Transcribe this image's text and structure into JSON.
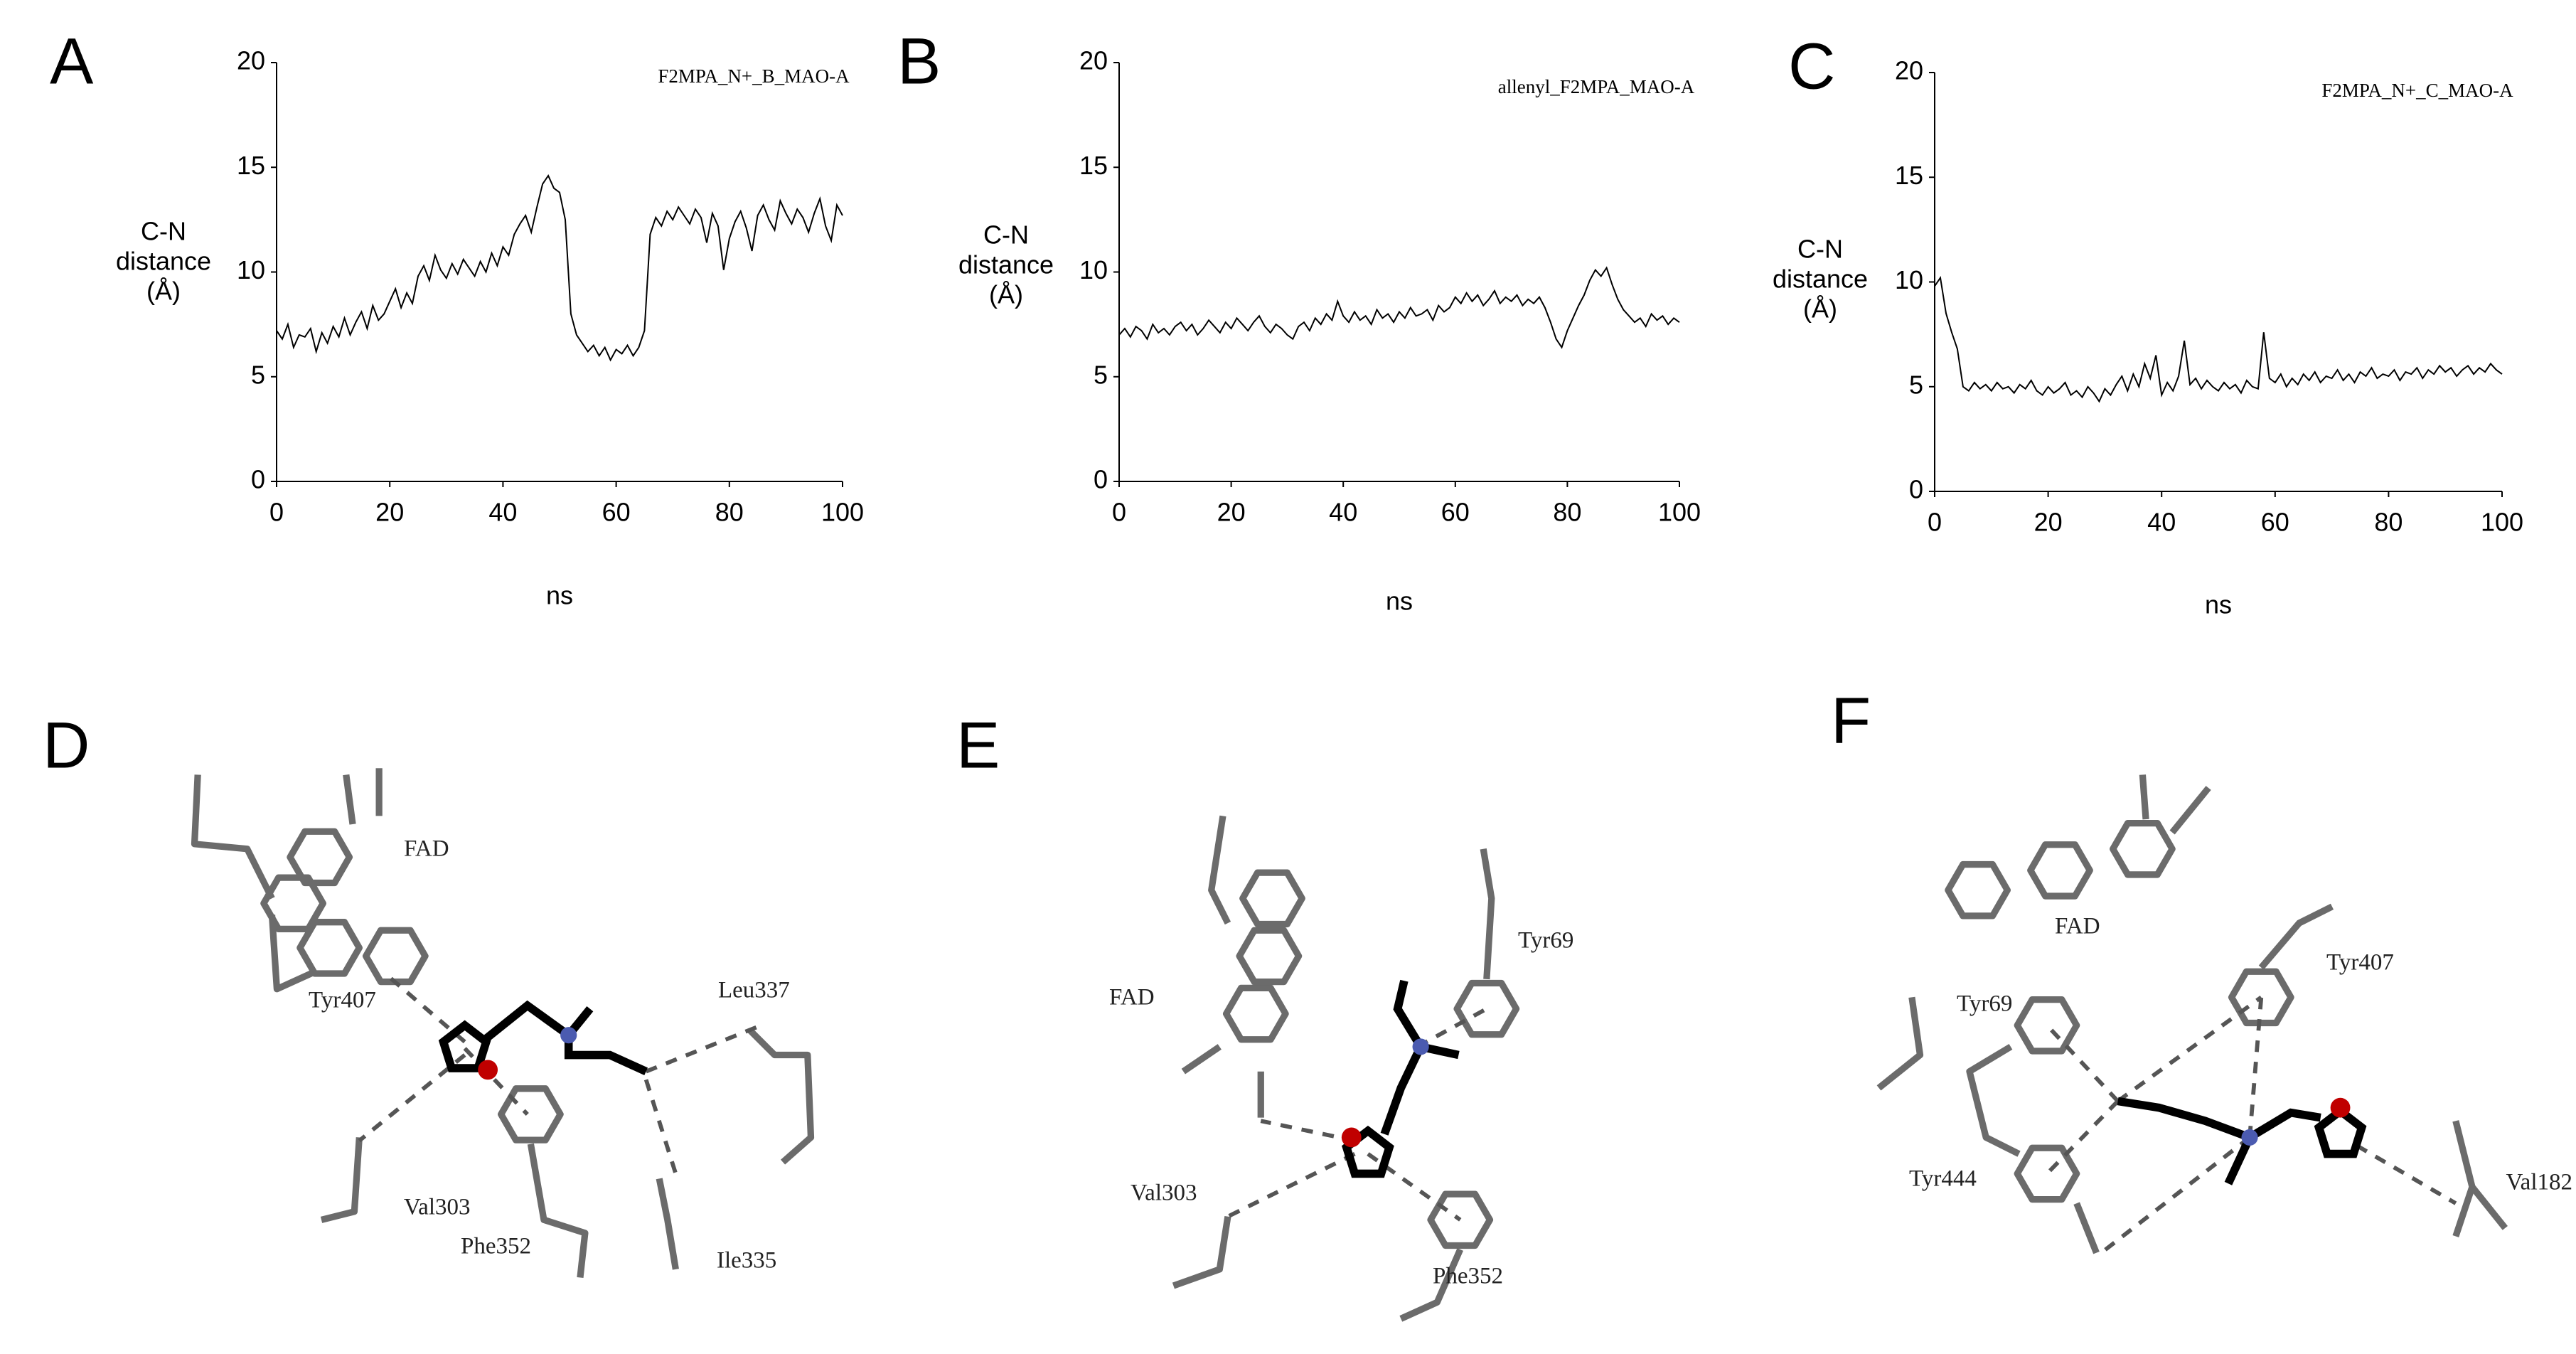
{
  "chart_data": [
    {
      "type": "line",
      "label": "A",
      "annotation": "F2MPA_N+_B_MAO-A",
      "y_label": [
        "C-N",
        "distance",
        "(Å)"
      ],
      "x_label": "ns",
      "color": "#000000",
      "x": [
        0,
        1,
        2,
        3,
        4,
        5,
        6,
        7,
        8,
        9,
        10,
        11,
        12,
        13,
        14,
        15,
        16,
        17,
        18,
        19,
        20,
        21,
        22,
        23,
        24,
        25,
        26,
        27,
        28,
        29,
        30,
        31,
        32,
        33,
        34,
        35,
        36,
        37,
        38,
        39,
        40,
        41,
        42,
        43,
        44,
        45,
        46,
        47,
        48,
        49,
        50,
        51,
        52,
        53,
        54,
        55,
        56,
        57,
        58,
        59,
        60,
        61,
        62,
        63,
        64,
        65,
        66,
        67,
        68,
        69,
        70,
        71,
        72,
        73,
        74,
        75,
        76,
        77,
        78,
        79,
        80,
        81,
        82,
        83,
        84,
        85,
        86,
        87,
        88,
        89,
        90,
        91,
        92,
        93,
        94,
        95,
        96,
        97,
        98,
        99,
        100
      ],
      "values": [
        7.2,
        6.8,
        7.5,
        6.4,
        7.0,
        6.9,
        7.3,
        6.2,
        7.1,
        6.6,
        7.4,
        6.9,
        7.8,
        7.0,
        7.6,
        8.1,
        7.3,
        8.4,
        7.7,
        8.0,
        8.6,
        9.2,
        8.3,
        9.0,
        8.5,
        9.8,
        10.3,
        9.6,
        10.8,
        10.1,
        9.7,
        10.4,
        9.9,
        10.6,
        10.2,
        9.8,
        10.5,
        10.0,
        10.9,
        10.3,
        11.2,
        10.8,
        11.8,
        12.3,
        12.7,
        11.9,
        13.1,
        14.2,
        14.6,
        14.0,
        13.8,
        12.5,
        8.0,
        7.0,
        6.6,
        6.2,
        6.5,
        6.0,
        6.4,
        5.8,
        6.3,
        6.1,
        6.5,
        6.0,
        6.4,
        7.2,
        11.8,
        12.6,
        12.2,
        12.9,
        12.5,
        13.1,
        12.7,
        12.3,
        13.0,
        12.6,
        11.4,
        12.8,
        12.2,
        10.1,
        11.6,
        12.4,
        12.9,
        12.1,
        11.0,
        12.7,
        13.2,
        12.5,
        12.0,
        13.4,
        12.8,
        12.3,
        13.0,
        12.6,
        11.9,
        12.8,
        13.5,
        12.2,
        11.5,
        13.2,
        12.7
      ],
      "xlim": [
        0,
        100
      ],
      "xticks": [
        0,
        20,
        40,
        60,
        80,
        100
      ],
      "ylim": [
        0,
        20
      ],
      "yticks": [
        0,
        5,
        10,
        15,
        20
      ]
    },
    {
      "type": "line",
      "label": "B",
      "annotation": "allenyl_F2MPA_MAO-A",
      "y_label": [
        "C-N",
        "distance",
        "(Å)"
      ],
      "x_label": "ns",
      "color": "#000000",
      "x": [
        0,
        1,
        2,
        3,
        4,
        5,
        6,
        7,
        8,
        9,
        10,
        11,
        12,
        13,
        14,
        15,
        16,
        17,
        18,
        19,
        20,
        21,
        22,
        23,
        24,
        25,
        26,
        27,
        28,
        29,
        30,
        31,
        32,
        33,
        34,
        35,
        36,
        37,
        38,
        39,
        40,
        41,
        42,
        43,
        44,
        45,
        46,
        47,
        48,
        49,
        50,
        51,
        52,
        53,
        54,
        55,
        56,
        57,
        58,
        59,
        60,
        61,
        62,
        63,
        64,
        65,
        66,
        67,
        68,
        69,
        70,
        71,
        72,
        73,
        74,
        75,
        76,
        77,
        78,
        79,
        80,
        81,
        82,
        83,
        84,
        85,
        86,
        87,
        88,
        89,
        90,
        91,
        92,
        93,
        94,
        95,
        96,
        97,
        98,
        99,
        100
      ],
      "values": [
        7.0,
        7.3,
        6.9,
        7.4,
        7.2,
        6.8,
        7.5,
        7.1,
        7.3,
        7.0,
        7.4,
        7.6,
        7.2,
        7.5,
        7.0,
        7.3,
        7.7,
        7.4,
        7.1,
        7.6,
        7.3,
        7.8,
        7.5,
        7.2,
        7.6,
        7.9,
        7.4,
        7.1,
        7.5,
        7.3,
        7.0,
        6.8,
        7.4,
        7.6,
        7.2,
        7.8,
        7.5,
        8.0,
        7.7,
        8.6,
        7.9,
        7.6,
        8.1,
        7.7,
        7.9,
        7.5,
        8.2,
        7.8,
        8.0,
        7.6,
        8.1,
        7.8,
        8.3,
        7.9,
        8.0,
        8.2,
        7.7,
        8.4,
        8.1,
        8.3,
        8.8,
        8.5,
        9.0,
        8.6,
        8.9,
        8.4,
        8.7,
        9.1,
        8.5,
        8.8,
        8.6,
        8.9,
        8.4,
        8.7,
        8.5,
        8.8,
        8.3,
        7.6,
        6.8,
        6.4,
        7.2,
        7.8,
        8.4,
        8.9,
        9.6,
        10.1,
        9.8,
        10.2,
        9.4,
        8.7,
        8.2,
        7.9,
        7.6,
        7.8,
        7.4,
        8.0,
        7.7,
        7.9,
        7.5,
        7.8,
        7.6
      ],
      "xlim": [
        0,
        100
      ],
      "xticks": [
        0,
        20,
        40,
        60,
        80,
        100
      ],
      "ylim": [
        0,
        20
      ],
      "yticks": [
        0,
        5,
        10,
        15,
        20
      ]
    },
    {
      "type": "line",
      "label": "C",
      "annotation": "F2MPA_N+_C_MAO-A",
      "y_label": [
        "C-N",
        "distance",
        "(Å)"
      ],
      "x_label": "ns",
      "color": "#000000",
      "x": [
        0,
        1,
        2,
        3,
        4,
        5,
        6,
        7,
        8,
        9,
        10,
        11,
        12,
        13,
        14,
        15,
        16,
        17,
        18,
        19,
        20,
        21,
        22,
        23,
        24,
        25,
        26,
        27,
        28,
        29,
        30,
        31,
        32,
        33,
        34,
        35,
        36,
        37,
        38,
        39,
        40,
        41,
        42,
        43,
        44,
        45,
        46,
        47,
        48,
        49,
        50,
        51,
        52,
        53,
        54,
        55,
        56,
        57,
        58,
        59,
        60,
        61,
        62,
        63,
        64,
        65,
        66,
        67,
        68,
        69,
        70,
        71,
        72,
        73,
        74,
        75,
        76,
        77,
        78,
        79,
        80,
        81,
        82,
        83,
        84,
        85,
        86,
        87,
        88,
        89,
        90,
        91,
        92,
        93,
        94,
        95,
        96,
        97,
        98,
        99,
        100
      ],
      "values": [
        9.8,
        10.2,
        8.5,
        7.6,
        6.8,
        5.0,
        4.8,
        5.2,
        4.9,
        5.1,
        4.8,
        5.2,
        4.9,
        5.0,
        4.7,
        5.1,
        4.9,
        5.3,
        4.8,
        4.6,
        5.0,
        4.7,
        4.9,
        5.2,
        4.6,
        4.8,
        4.5,
        5.0,
        4.7,
        4.3,
        4.9,
        4.6,
        5.1,
        5.5,
        4.8,
        5.6,
        5.0,
        6.1,
        5.4,
        6.5,
        4.6,
        5.2,
        4.8,
        5.5,
        7.2,
        5.1,
        5.4,
        4.9,
        5.3,
        5.0,
        4.8,
        5.2,
        4.9,
        5.1,
        4.7,
        5.3,
        5.0,
        4.9,
        7.6,
        5.4,
        5.2,
        5.6,
        5.0,
        5.4,
        5.1,
        5.6,
        5.3,
        5.7,
        5.2,
        5.5,
        5.4,
        5.8,
        5.3,
        5.6,
        5.2,
        5.7,
        5.5,
        5.9,
        5.4,
        5.6,
        5.5,
        5.8,
        5.3,
        5.7,
        5.6,
        5.9,
        5.4,
        5.8,
        5.6,
        6.0,
        5.7,
        5.9,
        5.5,
        5.8,
        6.0,
        5.6,
        5.9,
        5.7,
        6.1,
        5.8,
        5.6
      ],
      "xlim": [
        0,
        100
      ],
      "xticks": [
        0,
        20,
        40,
        60,
        80,
        100
      ],
      "ylim": [
        0,
        20
      ],
      "yticks": [
        0,
        5,
        10,
        15,
        20
      ]
    }
  ],
  "diagrams": [
    {
      "label": "D",
      "residues": [
        "FAD",
        "Tyr407",
        "Leu337",
        "Val303",
        "Phe352",
        "Ile335"
      ]
    },
    {
      "label": "E",
      "residues": [
        "FAD",
        "Tyr69",
        "Val303",
        "Phe352"
      ]
    },
    {
      "label": "F",
      "residues": [
        "FAD",
        "Tyr407",
        "Tyr69",
        "Tyr444",
        "Val182"
      ]
    }
  ]
}
